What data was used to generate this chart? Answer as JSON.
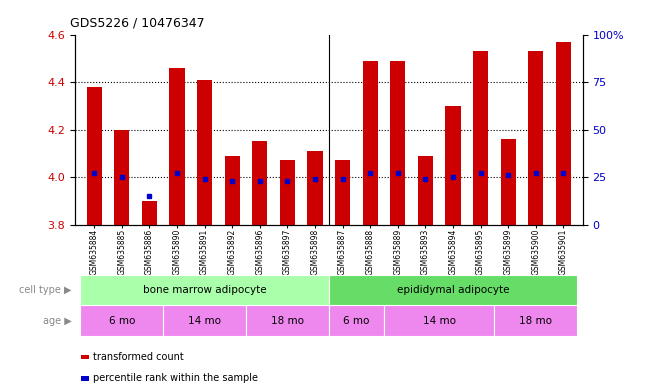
{
  "title": "GDS5226 / 10476347",
  "samples": [
    "GSM635884",
    "GSM635885",
    "GSM635886",
    "GSM635890",
    "GSM635891",
    "GSM635892",
    "GSM635896",
    "GSM635897",
    "GSM635898",
    "GSM635887",
    "GSM635888",
    "GSM635889",
    "GSM635893",
    "GSM635894",
    "GSM635895",
    "GSM635899",
    "GSM635900",
    "GSM635901"
  ],
  "transformed_counts": [
    4.38,
    4.2,
    3.9,
    4.46,
    4.41,
    4.09,
    4.15,
    4.07,
    4.11,
    4.07,
    4.49,
    4.49,
    4.09,
    4.3,
    4.53,
    4.16,
    4.53,
    4.57
  ],
  "percentile_ranks": [
    27,
    25,
    15,
    27,
    24,
    23,
    23,
    23,
    24,
    24,
    27,
    27,
    24,
    25,
    27,
    26,
    27,
    27
  ],
  "ymin": 3.8,
  "ymax": 4.6,
  "yticks": [
    3.8,
    4.0,
    4.2,
    4.4,
    4.6
  ],
  "right_yticks": [
    0,
    25,
    50,
    75,
    100
  ],
  "right_ytick_labels": [
    "0",
    "25",
    "50",
    "75",
    "100%"
  ],
  "cell_type_groups": [
    {
      "label": "bone marrow adipocyte",
      "start": 0,
      "end": 8,
      "color": "#aaffaa"
    },
    {
      "label": "epididymal adipocyte",
      "start": 9,
      "end": 17,
      "color": "#66dd66"
    }
  ],
  "age_groups": [
    {
      "label": "6 mo",
      "start": 0,
      "end": 2
    },
    {
      "label": "14 mo",
      "start": 3,
      "end": 5
    },
    {
      "label": "18 mo",
      "start": 6,
      "end": 8
    },
    {
      "label": "6 mo",
      "start": 9,
      "end": 10
    },
    {
      "label": "14 mo",
      "start": 11,
      "end": 14
    },
    {
      "label": "18 mo",
      "start": 15,
      "end": 17
    }
  ],
  "age_color": "#ee88ee",
  "bar_color": "#cc0000",
  "dot_color": "#0000cc",
  "bar_bottom": 3.8,
  "background_color": "#ffffff",
  "label_color_left": "#cc0000",
  "label_color_right": "#0000cc",
  "legend_items": [
    {
      "color": "#cc0000",
      "marker": "s",
      "label": "transformed count"
    },
    {
      "color": "#0000cc",
      "marker": "s",
      "label": "percentile rank within the sample"
    }
  ]
}
